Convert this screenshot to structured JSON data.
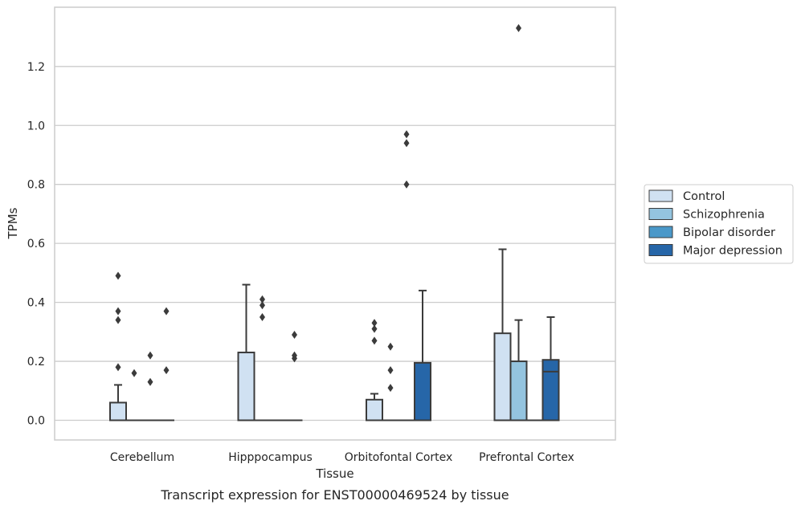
{
  "caption": "Transcript expression for ENST00000469524 by tissue",
  "chart_data": {
    "type": "box",
    "xlabel": "Tissue",
    "ylabel": "TPMs",
    "ylim": [
      -0.065,
      1.4
    ],
    "yticks": [
      "0.0",
      "0.2",
      "0.4",
      "0.6",
      "0.8",
      "1.0",
      "1.2"
    ],
    "grid": "horizontal",
    "legend_position": "right",
    "categories": [
      "Cerebellum",
      "Hipppocampus",
      "Orbitofontal Cortex",
      "Prefrontal Cortex"
    ],
    "series": [
      {
        "name": "Control",
        "color": "#d0e1f2",
        "boxes": [
          {
            "q1": 0.0,
            "median": 0.0,
            "q3": 0.06,
            "whisker_low": 0.0,
            "whisker_high": 0.12,
            "outliers": [
              0.18,
              0.34,
              0.37,
              0.49
            ]
          },
          {
            "q1": 0.0,
            "median": 0.0,
            "q3": 0.23,
            "whisker_low": 0.0,
            "whisker_high": 0.46,
            "outliers": []
          },
          {
            "q1": 0.0,
            "median": 0.0,
            "q3": 0.07,
            "whisker_low": 0.0,
            "whisker_high": 0.09,
            "outliers": [
              0.27,
              0.31,
              0.33
            ]
          },
          {
            "q1": 0.0,
            "median": 0.0,
            "q3": 0.295,
            "whisker_low": 0.0,
            "whisker_high": 0.58,
            "outliers": []
          }
        ]
      },
      {
        "name": "Schizophrenia",
        "color": "#94c4df",
        "boxes": [
          {
            "q1": 0.0,
            "median": 0.0,
            "q3": 0.0,
            "whisker_low": 0.0,
            "whisker_high": 0.0,
            "outliers": [
              0.16
            ]
          },
          {
            "q1": 0.0,
            "median": 0.0,
            "q3": 0.0,
            "whisker_low": 0.0,
            "whisker_high": 0.0,
            "outliers": [
              0.35,
              0.39,
              0.41
            ]
          },
          {
            "q1": 0.0,
            "median": 0.0,
            "q3": 0.0,
            "whisker_low": 0.0,
            "whisker_high": 0.0,
            "outliers": [
              0.11,
              0.17,
              0.25
            ]
          },
          {
            "q1": 0.0,
            "median": 0.0,
            "q3": 0.2,
            "whisker_low": 0.0,
            "whisker_high": 0.34,
            "outliers": [
              1.33
            ]
          }
        ]
      },
      {
        "name": "Bipolar disorder",
        "color": "#4a98c9",
        "boxes": [
          {
            "q1": 0.0,
            "median": 0.0,
            "q3": 0.0,
            "whisker_low": 0.0,
            "whisker_high": 0.0,
            "outliers": [
              0.13,
              0.22
            ]
          },
          {
            "q1": 0.0,
            "median": 0.0,
            "q3": 0.0,
            "whisker_low": 0.0,
            "whisker_high": 0.0,
            "outliers": []
          },
          {
            "q1": 0.0,
            "median": 0.0,
            "q3": 0.0,
            "whisker_low": 0.0,
            "whisker_high": 0.0,
            "outliers": [
              0.8,
              0.94,
              0.97
            ]
          },
          {
            "q1": 0.0,
            "median": 0.0,
            "q3": 0.0,
            "whisker_low": 0.0,
            "whisker_high": 0.0,
            "outliers": []
          }
        ]
      },
      {
        "name": "Major depression",
        "color": "#2666a8",
        "boxes": [
          {
            "q1": 0.0,
            "median": 0.0,
            "q3": 0.0,
            "whisker_low": 0.0,
            "whisker_high": 0.0,
            "outliers": [
              0.17,
              0.37
            ]
          },
          {
            "q1": 0.0,
            "median": 0.0,
            "q3": 0.0,
            "whisker_low": 0.0,
            "whisker_high": 0.0,
            "outliers": [
              0.21,
              0.22,
              0.29
            ]
          },
          {
            "q1": 0.0,
            "median": 0.0,
            "q3": 0.195,
            "whisker_low": 0.0,
            "whisker_high": 0.44,
            "outliers": []
          },
          {
            "q1": 0.0,
            "median": 0.165,
            "q3": 0.205,
            "whisker_low": 0.0,
            "whisker_high": 0.35,
            "outliers": []
          }
        ]
      }
    ]
  }
}
